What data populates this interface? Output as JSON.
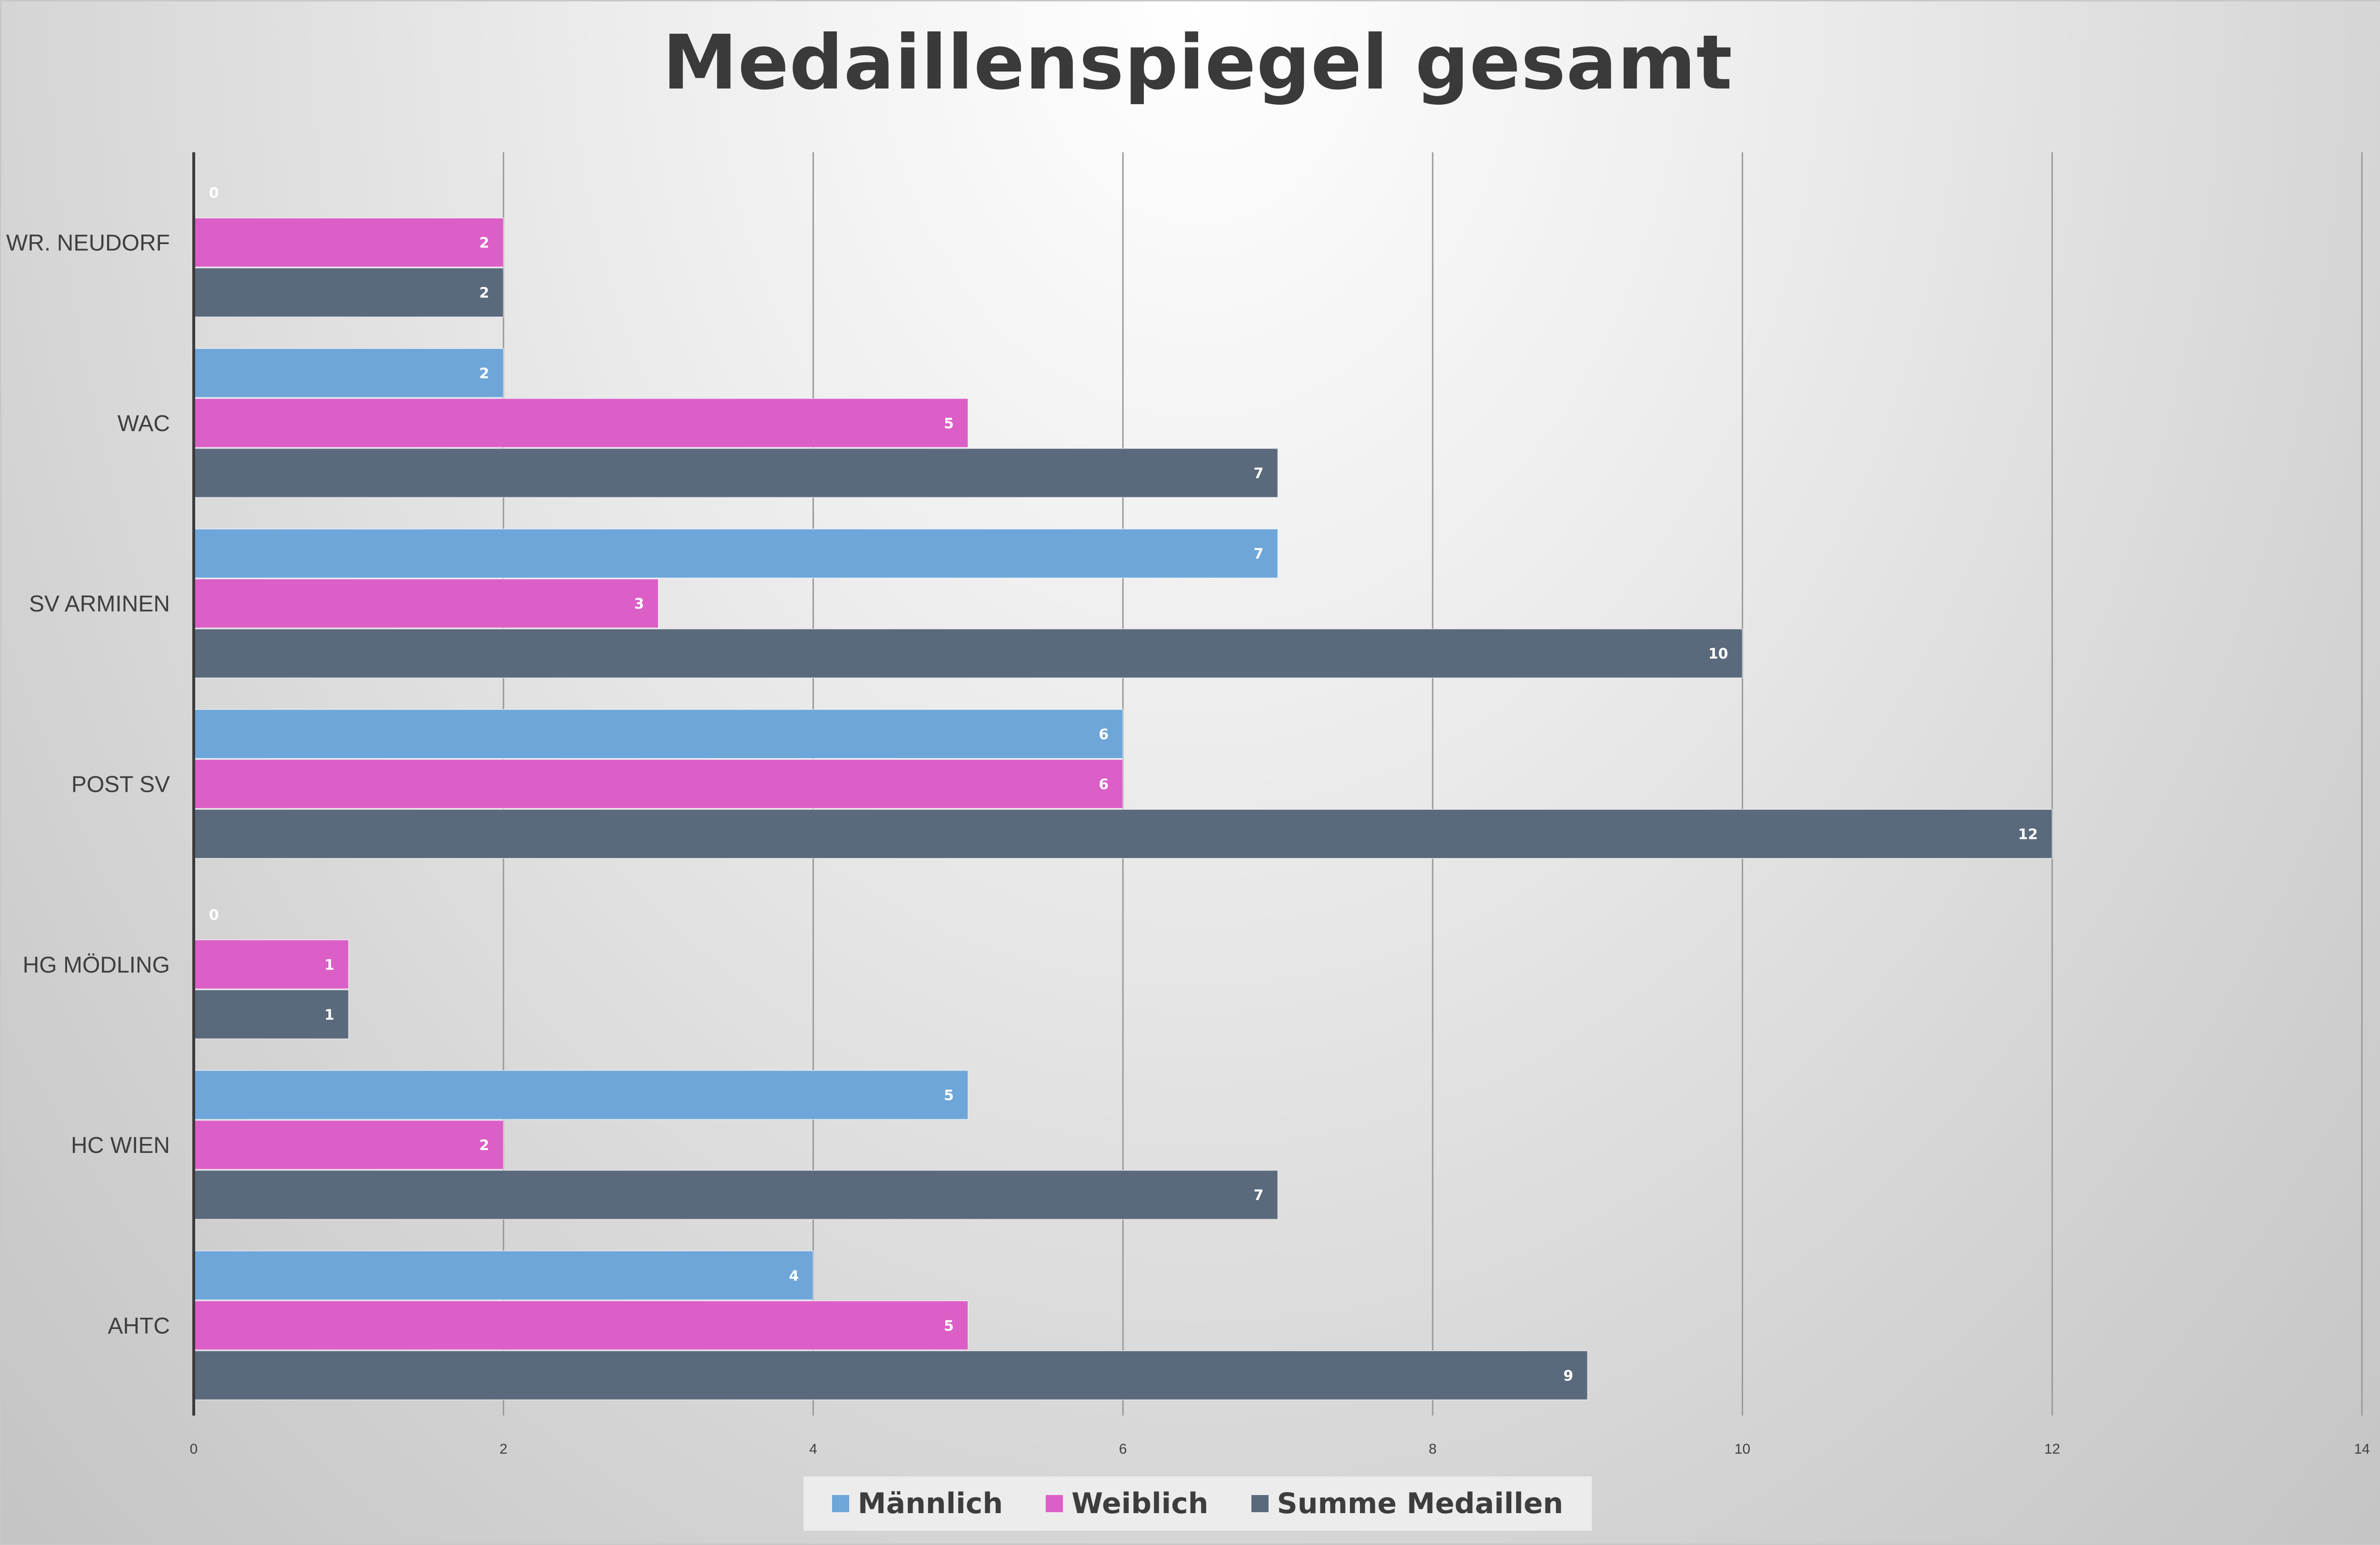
{
  "chart_data": {
    "type": "bar",
    "orientation": "horizontal",
    "title": "Medaillenspiegel gesamt",
    "xlabel": "",
    "ylabel": "",
    "xlim": [
      0,
      14
    ],
    "x_ticks": [
      "0",
      "2",
      "4",
      "6",
      "8",
      "10",
      "12",
      "14"
    ],
    "grid": "vertical",
    "legend": "bottom-center",
    "categories": [
      "WR. NEUDORF",
      "WAC",
      "SV ARMINEN",
      "POST SV",
      "HG MÖDLING",
      "HC WIEN",
      "AHTC"
    ],
    "series": [
      {
        "name": "Männlich",
        "color": "#6ea6d9",
        "values": [
          0,
          2,
          7,
          6,
          0,
          5,
          4
        ]
      },
      {
        "name": "Weiblich",
        "color": "#db5fc6",
        "values": [
          2,
          5,
          3,
          6,
          1,
          2,
          5
        ]
      },
      {
        "name": "Summe Medaillen",
        "color": "#5b697c",
        "values": [
          2,
          7,
          10,
          12,
          1,
          7,
          9
        ]
      }
    ]
  }
}
